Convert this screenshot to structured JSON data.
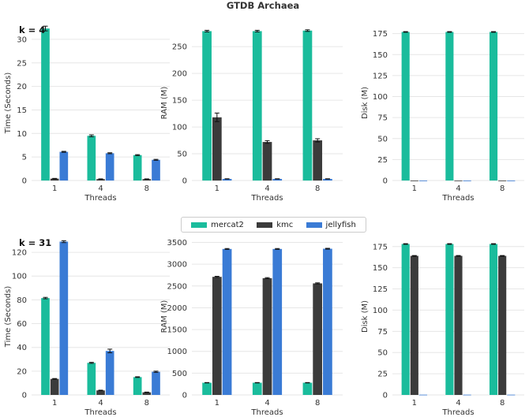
{
  "figure": {
    "title": "GTDB Archaea"
  },
  "colors": {
    "mercat2": "#1abc9c",
    "kmc": "#3b3b3b",
    "jellyfish": "#3a7bd5",
    "grid": "#e6e6e6"
  },
  "legend": [
    {
      "name": "mercat2",
      "color": "#1abc9c"
    },
    {
      "name": "kmc",
      "color": "#3b3b3b"
    },
    {
      "name": "jellyfish",
      "color": "#3a7bd5"
    }
  ],
  "chart_data": [
    {
      "type": "bar",
      "row_label": "k = 4",
      "xlabel": "Threads",
      "ylabel": "Time (Seconds)",
      "categories": [
        "1",
        "4",
        "8"
      ],
      "ylim": [
        0,
        33
      ],
      "yticks": [
        0,
        5,
        10,
        15,
        20,
        25,
        30
      ],
      "series": [
        {
          "name": "mercat2",
          "values": [
            32.3,
            9.5,
            5.4
          ],
          "errors": [
            0.5,
            0.2,
            0.1
          ]
        },
        {
          "name": "kmc",
          "values": [
            0.4,
            0.3,
            0.3
          ],
          "errors": [
            0.05,
            0.05,
            0.05
          ]
        },
        {
          "name": "jellyfish",
          "values": [
            6.1,
            5.8,
            4.4
          ],
          "errors": [
            0.1,
            0.1,
            0.1
          ]
        }
      ]
    },
    {
      "type": "bar",
      "row_label": "",
      "xlabel": "Threads",
      "ylabel": "RAM (M)",
      "categories": [
        "1",
        "4",
        "8"
      ],
      "ylim": [
        0,
        290
      ],
      "yticks": [
        0,
        50,
        100,
        150,
        200,
        250
      ],
      "series": [
        {
          "name": "mercat2",
          "values": [
            279,
            279,
            280
          ],
          "errors": [
            1.5,
            1.5,
            1.5
          ]
        },
        {
          "name": "kmc",
          "values": [
            118,
            72,
            75
          ],
          "errors": [
            8,
            2.5,
            3
          ]
        },
        {
          "name": "jellyfish",
          "values": [
            3,
            3,
            3
          ],
          "errors": [
            0.3,
            0.3,
            0.3
          ]
        }
      ]
    },
    {
      "type": "bar",
      "row_label": "",
      "xlabel": "Threads",
      "ylabel": "Disk (M)",
      "categories": [
        "1",
        "4",
        "8"
      ],
      "ylim": [
        0,
        185
      ],
      "yticks": [
        0,
        25,
        50,
        75,
        100,
        125,
        150,
        175
      ],
      "series": [
        {
          "name": "mercat2",
          "values": [
            177,
            177,
            177
          ],
          "errors": [
            0.4,
            0.4,
            0.4
          ]
        },
        {
          "name": "kmc",
          "values": [
            0,
            0,
            0
          ],
          "errors": [
            0,
            0,
            0
          ]
        },
        {
          "name": "jellyfish",
          "values": [
            0,
            0,
            0
          ],
          "errors": [
            0,
            0,
            0
          ]
        }
      ]
    },
    {
      "type": "bar",
      "row_label": "k = 31",
      "xlabel": "Threads",
      "ylabel": "Time (Seconds)",
      "categories": [
        "1",
        "4",
        "8"
      ],
      "ylim": [
        0,
        132
      ],
      "yticks": [
        0,
        20,
        40,
        60,
        80,
        100,
        120
      ],
      "series": [
        {
          "name": "mercat2",
          "values": [
            81.5,
            27,
            15
          ],
          "errors": [
            0.6,
            0.4,
            0.3
          ]
        },
        {
          "name": "kmc",
          "values": [
            13.5,
            3.8,
            2.2
          ],
          "errors": [
            0.3,
            0.2,
            0.2
          ]
        },
        {
          "name": "jellyfish",
          "values": [
            129,
            37,
            19.5
          ],
          "errors": [
            0.8,
            1.5,
            0.5
          ]
        }
      ]
    },
    {
      "type": "bar",
      "row_label": "",
      "xlabel": "Threads",
      "ylabel": "RAM (M)",
      "categories": [
        "1",
        "4",
        "8"
      ],
      "ylim": [
        0,
        3600
      ],
      "yticks": [
        0,
        500,
        1000,
        1500,
        2000,
        2500,
        3000,
        3500
      ],
      "series": [
        {
          "name": "mercat2",
          "values": [
            280,
            280,
            280
          ],
          "errors": [
            4,
            4,
            4
          ]
        },
        {
          "name": "kmc",
          "values": [
            2710,
            2680,
            2560
          ],
          "errors": [
            12,
            12,
            12
          ]
        },
        {
          "name": "jellyfish",
          "values": [
            3350,
            3350,
            3355
          ],
          "errors": [
            10,
            10,
            10
          ]
        }
      ]
    },
    {
      "type": "bar",
      "row_label": "",
      "xlabel": "Threads",
      "ylabel": "Disk (M)",
      "categories": [
        "1",
        "4",
        "8"
      ],
      "ylim": [
        0,
        185
      ],
      "yticks": [
        0,
        25,
        50,
        75,
        100,
        125,
        150,
        175
      ],
      "series": [
        {
          "name": "mercat2",
          "values": [
            178,
            178,
            178
          ],
          "errors": [
            0.4,
            0.4,
            0.4
          ]
        },
        {
          "name": "kmc",
          "values": [
            164,
            164,
            164
          ],
          "errors": [
            0.4,
            0.4,
            0.4
          ]
        },
        {
          "name": "jellyfish",
          "values": [
            0.3,
            0.3,
            0.3
          ],
          "errors": [
            0,
            0,
            0
          ]
        }
      ]
    }
  ]
}
